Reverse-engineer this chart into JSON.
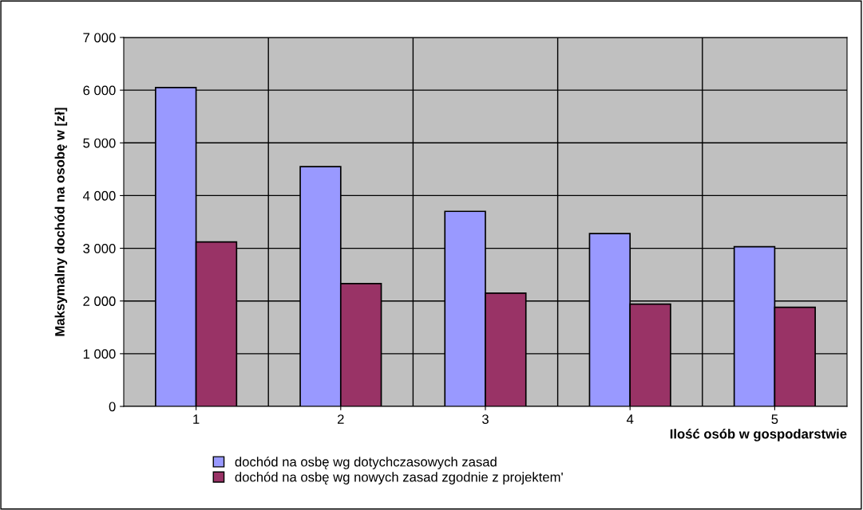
{
  "chart_data": {
    "type": "bar",
    "xlabel": "Ilość osób w gospodarstwie",
    "ylabel": "Maksymalny dochód na osobę w [zł]",
    "categories": [
      "1",
      "2",
      "3",
      "4",
      "5"
    ],
    "series": [
      {
        "name": "dochód na osbę wg dotychczasowych zasad",
        "color": "#9999ff",
        "values": [
          6050,
          4550,
          3700,
          3280,
          3030
        ]
      },
      {
        "name": "dochód na osbę wg nowych zasad zgodnie z projektem'",
        "color": "#993366",
        "values": [
          3120,
          2330,
          2150,
          1940,
          1880
        ]
      }
    ],
    "ylim": [
      0,
      7000
    ],
    "yticks": [
      {
        "value": 0,
        "label": "0"
      },
      {
        "value": 1000,
        "label": "1 000"
      },
      {
        "value": 2000,
        "label": "2 000"
      },
      {
        "value": 3000,
        "label": "3 000"
      },
      {
        "value": 4000,
        "label": "4 000"
      },
      {
        "value": 5000,
        "label": "5 000"
      },
      {
        "value": 6000,
        "label": "6 000"
      },
      {
        "value": 7000,
        "label": "7 000"
      }
    ],
    "grid": true,
    "legend": "bottom"
  }
}
